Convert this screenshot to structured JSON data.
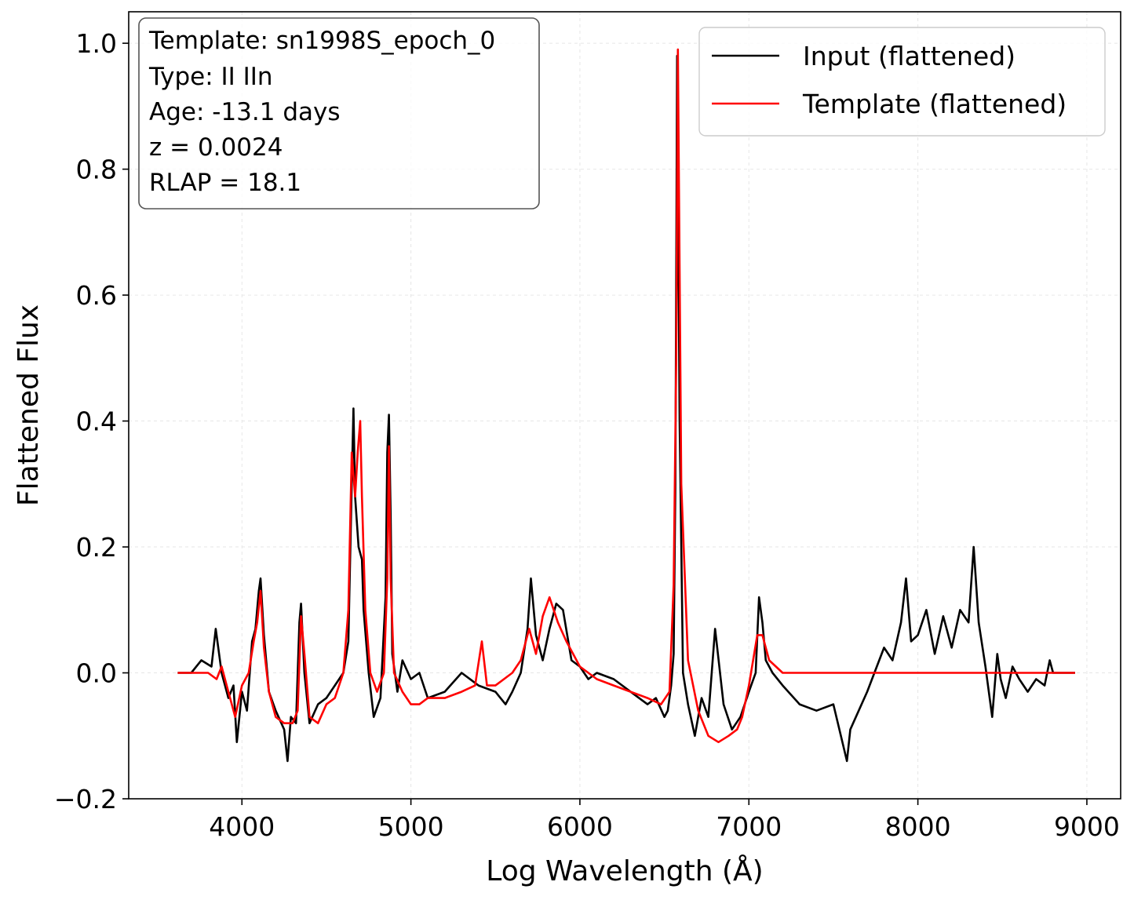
{
  "chart_data": {
    "type": "line",
    "xlabel": "Log Wavelength (Å)",
    "ylabel": "Flattened Flux",
    "xlim": [
      3330,
      9200
    ],
    "ylim": [
      -0.2,
      1.05
    ],
    "x_ticks": [
      4000,
      5000,
      6000,
      7000,
      8000,
      9000
    ],
    "x_tick_labels": [
      "4000",
      "5000",
      "6000",
      "7000",
      "8000",
      "9000"
    ],
    "y_ticks": [
      -0.2,
      0.0,
      0.2,
      0.4,
      0.6,
      0.8,
      1.0
    ],
    "y_tick_labels": [
      "−0.2",
      "0.0",
      "0.2",
      "0.4",
      "0.6",
      "0.8",
      "1.0"
    ],
    "grid": true,
    "legend_position": "top-right",
    "info_box": {
      "lines": [
        "Template: sn1998S_epoch_0",
        "Type: II IIn",
        "Age: -13.1 days",
        "z = 0.0024",
        "RLAP = 18.1"
      ]
    },
    "series": [
      {
        "name": "Input (flattened)",
        "color": "#000000",
        "x": [
          3620,
          3700,
          3760,
          3820,
          3845,
          3880,
          3920,
          3950,
          3970,
          4000,
          4030,
          4060,
          4080,
          4100,
          4110,
          4130,
          4160,
          4200,
          4250,
          4270,
          4290,
          4320,
          4340,
          4350,
          4370,
          4400,
          4450,
          4500,
          4550,
          4600,
          4630,
          4650,
          4660,
          4670,
          4690,
          4710,
          4720,
          4750,
          4780,
          4820,
          4850,
          4860,
          4870,
          4880,
          4890,
          4920,
          4950,
          5000,
          5050,
          5100,
          5200,
          5300,
          5400,
          5500,
          5560,
          5600,
          5650,
          5690,
          5710,
          5740,
          5780,
          5820,
          5860,
          5900,
          5950,
          6000,
          6050,
          6100,
          6200,
          6300,
          6400,
          6450,
          6500,
          6520,
          6540,
          6555,
          6565,
          6575,
          6590,
          6610,
          6640,
          6680,
          6720,
          6760,
          6800,
          6850,
          6900,
          6950,
          7000,
          7040,
          7060,
          7080,
          7100,
          7140,
          7200,
          7300,
          7400,
          7500,
          7580,
          7600,
          7700,
          7800,
          7850,
          7900,
          7930,
          7960,
          8000,
          8050,
          8100,
          8150,
          8200,
          8250,
          8300,
          8330,
          8360,
          8400,
          8440,
          8470,
          8490,
          8520,
          8560,
          8600,
          8650,
          8700,
          8750,
          8780,
          8800,
          8850,
          8900,
          8930
        ],
        "y": [
          0.0,
          0.0,
          0.02,
          0.01,
          0.07,
          0.0,
          -0.04,
          -0.02,
          -0.11,
          -0.03,
          -0.06,
          0.05,
          0.07,
          0.13,
          0.15,
          0.06,
          -0.03,
          -0.06,
          -0.09,
          -0.14,
          -0.07,
          -0.08,
          0.08,
          0.11,
          0.0,
          -0.08,
          -0.05,
          -0.04,
          -0.02,
          0.0,
          0.05,
          0.3,
          0.42,
          0.28,
          0.2,
          0.18,
          0.1,
          0.0,
          -0.07,
          -0.04,
          0.12,
          0.35,
          0.41,
          0.25,
          0.03,
          -0.03,
          0.02,
          -0.01,
          0.0,
          -0.04,
          -0.03,
          0.0,
          -0.02,
          -0.03,
          -0.05,
          -0.03,
          0.0,
          0.07,
          0.15,
          0.06,
          0.02,
          0.07,
          0.11,
          0.1,
          0.02,
          0.01,
          -0.01,
          0.0,
          -0.01,
          -0.03,
          -0.05,
          -0.04,
          -0.07,
          -0.06,
          -0.02,
          0.03,
          0.3,
          0.98,
          0.4,
          0.0,
          -0.05,
          -0.1,
          -0.04,
          -0.07,
          0.07,
          -0.05,
          -0.09,
          -0.07,
          -0.03,
          0.0,
          0.12,
          0.08,
          0.02,
          0.0,
          -0.02,
          -0.05,
          -0.06,
          -0.05,
          -0.14,
          -0.09,
          -0.03,
          0.04,
          0.02,
          0.08,
          0.15,
          0.05,
          0.06,
          0.1,
          0.03,
          0.09,
          0.04,
          0.1,
          0.08,
          0.2,
          0.08,
          0.01,
          -0.07,
          0.03,
          -0.01,
          -0.04,
          0.01,
          -0.01,
          -0.03,
          -0.01,
          -0.02,
          0.02,
          0.0,
          0.0,
          0.0,
          0.0
        ]
      },
      {
        "name": "Template (flattened)",
        "color": "#ff0000",
        "x": [
          3620,
          3700,
          3800,
          3850,
          3880,
          3920,
          3960,
          4000,
          4040,
          4070,
          4090,
          4110,
          4130,
          4160,
          4200,
          4250,
          4300,
          4330,
          4350,
          4370,
          4400,
          4450,
          4500,
          4550,
          4600,
          4630,
          4650,
          4670,
          4685,
          4700,
          4710,
          4730,
          4760,
          4800,
          4840,
          4860,
          4870,
          4880,
          4900,
          4950,
          5000,
          5050,
          5100,
          5200,
          5300,
          5380,
          5420,
          5450,
          5500,
          5600,
          5650,
          5700,
          5740,
          5780,
          5820,
          5870,
          5920,
          5960,
          6000,
          6100,
          6200,
          6300,
          6400,
          6480,
          6530,
          6555,
          6570,
          6580,
          6600,
          6640,
          6700,
          6760,
          6820,
          6880,
          6930,
          6960,
          7000,
          7050,
          7080,
          7120,
          7200,
          7300,
          7400,
          7500,
          8000,
          8500,
          8930
        ],
        "y": [
          0.0,
          0.0,
          0.0,
          -0.01,
          0.01,
          -0.03,
          -0.07,
          -0.02,
          0.0,
          0.05,
          0.08,
          0.13,
          0.04,
          -0.03,
          -0.07,
          -0.08,
          -0.08,
          -0.06,
          0.09,
          0.03,
          -0.07,
          -0.08,
          -0.05,
          -0.04,
          0.0,
          0.1,
          0.35,
          0.28,
          0.35,
          0.4,
          0.28,
          0.1,
          0.0,
          -0.03,
          0.0,
          0.15,
          0.36,
          0.15,
          0.0,
          -0.03,
          -0.05,
          -0.05,
          -0.04,
          -0.04,
          -0.03,
          -0.02,
          0.05,
          -0.02,
          -0.02,
          0.0,
          0.02,
          0.07,
          0.03,
          0.09,
          0.12,
          0.08,
          0.05,
          0.03,
          0.01,
          -0.01,
          -0.02,
          -0.03,
          -0.04,
          -0.05,
          -0.03,
          0.14,
          0.5,
          0.99,
          0.3,
          0.02,
          -0.06,
          -0.1,
          -0.11,
          -0.1,
          -0.09,
          -0.07,
          -0.02,
          0.06,
          0.06,
          0.02,
          0.0,
          0.0,
          0.0,
          0.0,
          0.0,
          0.0,
          0.0
        ]
      }
    ]
  }
}
